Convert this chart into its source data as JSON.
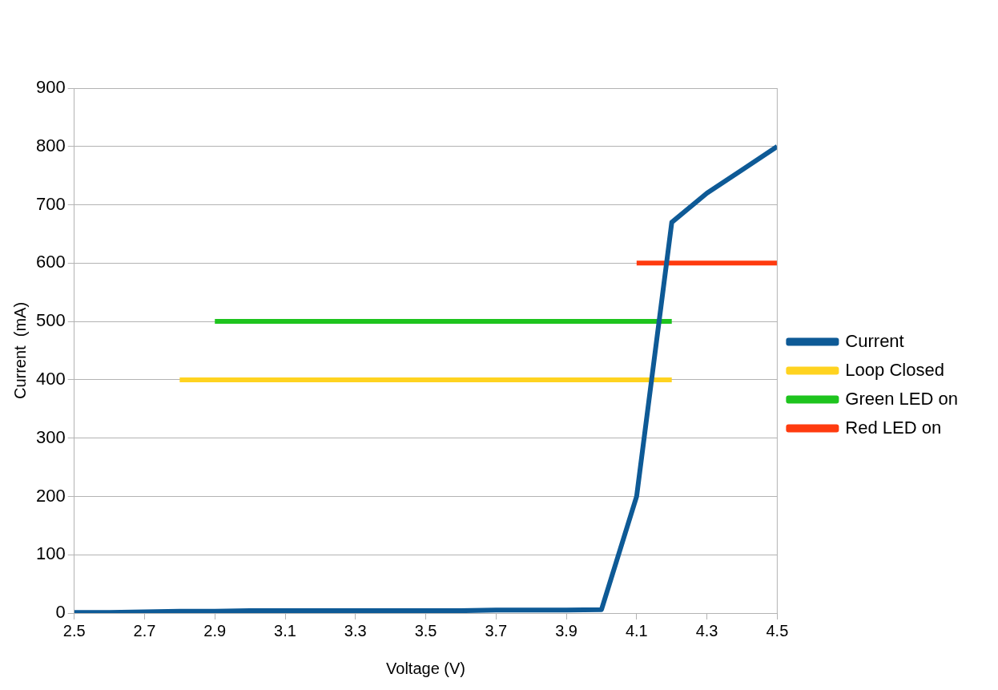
{
  "chart_data": {
    "type": "line",
    "xlabel": "Voltage (V)",
    "ylabel": "Current  (mA)",
    "xlim": [
      2.5,
      4.5
    ],
    "xticks": [
      2.5,
      2.7,
      2.9,
      3.1,
      3.3,
      3.5,
      3.7,
      3.9,
      4.1,
      4.3,
      4.5
    ],
    "ylim": [
      0,
      900
    ],
    "yticks": [
      0,
      100,
      200,
      300,
      400,
      500,
      600,
      700,
      800,
      900
    ],
    "grid": "y",
    "legend": "right",
    "marker": "none",
    "line_style": "solid",
    "series": [
      {
        "name": "Current",
        "color": "#0e5a96",
        "x": [
          2.5,
          2.6,
          2.7,
          2.8,
          2.9,
          3.0,
          3.1,
          3.2,
          3.3,
          3.4,
          3.5,
          3.6,
          3.7,
          3.8,
          3.9,
          4.0,
          4.1,
          4.2,
          4.3,
          4.4,
          4.5
        ],
        "values": [
          1,
          1,
          2,
          3,
          3,
          4,
          4,
          4,
          4,
          4,
          4,
          4,
          5,
          5,
          5,
          6,
          200,
          670,
          720,
          760,
          800
        ]
      },
      {
        "name": "Loop Closed",
        "color": "#ffd320",
        "x": [
          2.8,
          4.2
        ],
        "values": [
          400,
          400
        ]
      },
      {
        "name": "Green LED on",
        "color": "#1ec41e",
        "x": [
          2.9,
          4.2
        ],
        "values": [
          500,
          500
        ]
      },
      {
        "name": "Red LED on",
        "color": "#ff3b0f",
        "x": [
          4.1,
          4.5
        ],
        "values": [
          600,
          600
        ]
      }
    ]
  }
}
